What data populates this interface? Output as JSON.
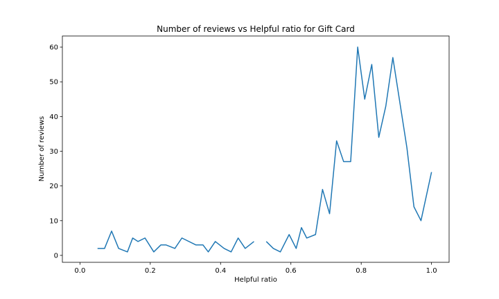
{
  "chart_data": {
    "type": "line",
    "title": "Number of reviews vs Helpful ratio for Gift Card",
    "xlabel": "Helpful ratio",
    "ylabel": "Number of reviews",
    "xlim": [
      -0.05,
      1.05
    ],
    "ylim": [
      -2,
      63.2
    ],
    "xticks": [
      0.0,
      0.2,
      0.4,
      0.6,
      0.8,
      1.0
    ],
    "xtick_labels": [
      "0.0",
      "0.2",
      "0.4",
      "0.6",
      "0.8",
      "1.0"
    ],
    "yticks": [
      0,
      10,
      20,
      30,
      40,
      50,
      60
    ],
    "ytick_labels": [
      "0",
      "10",
      "20",
      "30",
      "40",
      "50",
      "60"
    ],
    "grid": false,
    "legend": "none",
    "series": [
      {
        "color": "#1f77b4",
        "points": [
          [
            0.05,
            2
          ],
          [
            0.07,
            2
          ],
          [
            0.09,
            7
          ],
          [
            0.11,
            2
          ],
          [
            0.135,
            1
          ],
          [
            0.15,
            5
          ],
          [
            0.165,
            4
          ],
          [
            0.185,
            5
          ],
          [
            0.21,
            1
          ],
          [
            0.23,
            3
          ],
          [
            0.245,
            3
          ],
          [
            0.27,
            2
          ],
          [
            0.29,
            5
          ],
          [
            0.33,
            3
          ],
          [
            0.35,
            3
          ],
          [
            0.365,
            1
          ],
          [
            0.385,
            4
          ],
          [
            0.41,
            2
          ],
          [
            0.43,
            1
          ],
          [
            0.45,
            5
          ],
          [
            0.47,
            2
          ],
          [
            0.495,
            4
          ],
          [
            0.5,
            null
          ],
          [
            0.53,
            4
          ],
          [
            0.55,
            2
          ],
          [
            0.57,
            1
          ],
          [
            0.595,
            6
          ],
          [
            0.615,
            2
          ],
          [
            0.63,
            8
          ],
          [
            0.645,
            5
          ],
          [
            0.67,
            6
          ],
          [
            0.69,
            19
          ],
          [
            0.71,
            12
          ],
          [
            0.73,
            33
          ],
          [
            0.75,
            27
          ],
          [
            0.77,
            27
          ],
          [
            0.79,
            60
          ],
          [
            0.81,
            45
          ],
          [
            0.83,
            55
          ],
          [
            0.85,
            34
          ],
          [
            0.87,
            43
          ],
          [
            0.89,
            57
          ],
          [
            0.91,
            44
          ],
          [
            0.93,
            31
          ],
          [
            0.95,
            14
          ],
          [
            0.97,
            10
          ],
          [
            1.0,
            24
          ]
        ]
      }
    ]
  }
}
